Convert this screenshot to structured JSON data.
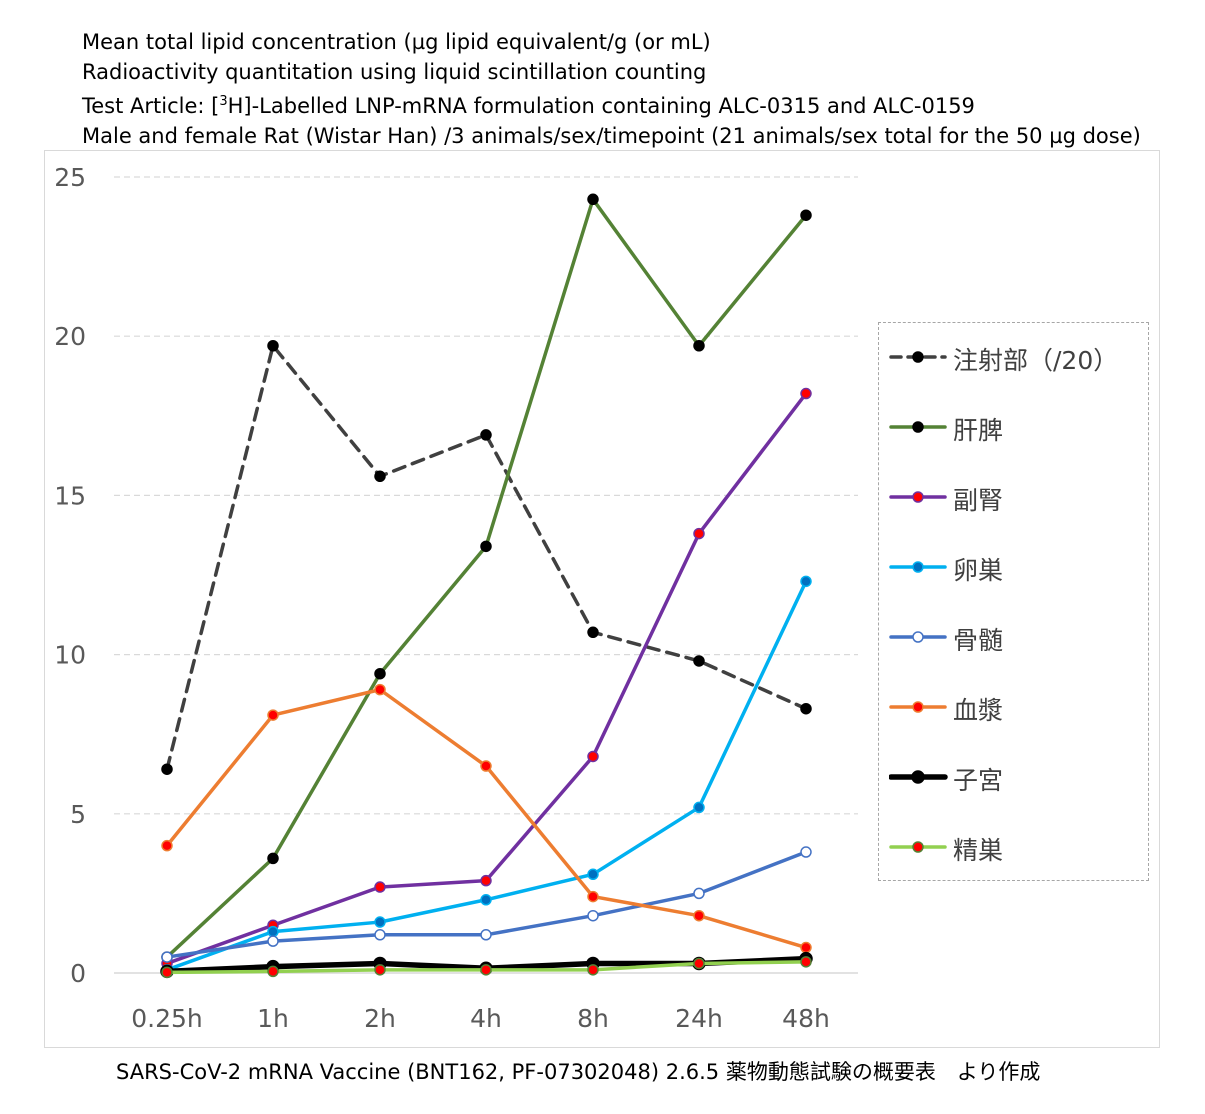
{
  "header": {
    "line1": "Mean total lipid concentration (µg lipid equivalent/g (or mL)",
    "line2": "Radioactivity quantitation using liquid scintillation counting",
    "line3_prefix": "Test Article: [",
    "line3_sup": "3",
    "line3_suffix": "H]-Labelled LNP-mRNA formulation containing ALC-0315 and ALC-0159",
    "line4": "Male and female Rat (Wistar Han) /3 animals/sex/timepoint (21 animals/sex total for the 50 µg dose)"
  },
  "footer": "SARS-CoV-2 mRNA Vaccine (BNT162, PF-07302048) 2.6.5 薬物動態試験の概要表　より作成",
  "chart_data": {
    "type": "line",
    "categories": [
      "0.25h",
      "1h",
      "2h",
      "4h",
      "8h",
      "24h",
      "48h"
    ],
    "ylim": [
      0,
      25
    ],
    "yticks": [
      0,
      5,
      10,
      15,
      20,
      25
    ],
    "grid": "horizontal-dashed",
    "legend_position": "right",
    "series": [
      {
        "name": "注射部（/20）",
        "color": "#404040",
        "dash": true,
        "marker_fill": "#000000",
        "marker_stroke": "#000000",
        "width": 3.5,
        "values": [
          6.4,
          19.7,
          15.6,
          16.9,
          10.7,
          9.8,
          8.3
        ]
      },
      {
        "name": "肝脾",
        "color": "#548235",
        "dash": false,
        "marker_fill": "#000000",
        "marker_stroke": "#000000",
        "width": 3.5,
        "values": [
          0.5,
          3.6,
          9.4,
          13.4,
          24.3,
          19.7,
          23.8
        ]
      },
      {
        "name": "副腎",
        "color": "#7030a0",
        "dash": false,
        "marker_fill": "#ff0000",
        "marker_stroke": "#7030a0",
        "width": 3.5,
        "values": [
          0.3,
          1.5,
          2.7,
          2.9,
          6.8,
          13.8,
          18.2
        ]
      },
      {
        "name": "卵巣",
        "color": "#00b0f0",
        "dash": false,
        "marker_fill": "#0070c0",
        "marker_stroke": "#00b0f0",
        "width": 3.5,
        "values": [
          0.1,
          1.3,
          1.6,
          2.3,
          3.1,
          5.2,
          12.3
        ]
      },
      {
        "name": "骨髄",
        "color": "#4472c4",
        "dash": false,
        "marker_fill": "#ffffff",
        "marker_stroke": "#4472c4",
        "width": 3.5,
        "values": [
          0.5,
          1.0,
          1.2,
          1.2,
          1.8,
          2.5,
          3.8
        ]
      },
      {
        "name": "血漿",
        "color": "#ed7d31",
        "dash": false,
        "marker_fill": "#ff0000",
        "marker_stroke": "#ed7d31",
        "width": 3.5,
        "values": [
          4.0,
          8.1,
          8.9,
          6.5,
          2.4,
          1.8,
          0.8
        ]
      },
      {
        "name": "子宮",
        "color": "#000000",
        "dash": false,
        "marker_fill": "#000000",
        "marker_stroke": "#000000",
        "width": 5.5,
        "values": [
          0.05,
          0.2,
          0.3,
          0.15,
          0.3,
          0.3,
          0.45
        ]
      },
      {
        "name": "精巣",
        "color": "#92d050",
        "dash": false,
        "marker_fill": "#ff0000",
        "marker_stroke": "#548235",
        "width": 3.5,
        "values": [
          0.02,
          0.05,
          0.1,
          0.1,
          0.1,
          0.3,
          0.35
        ]
      }
    ]
  }
}
